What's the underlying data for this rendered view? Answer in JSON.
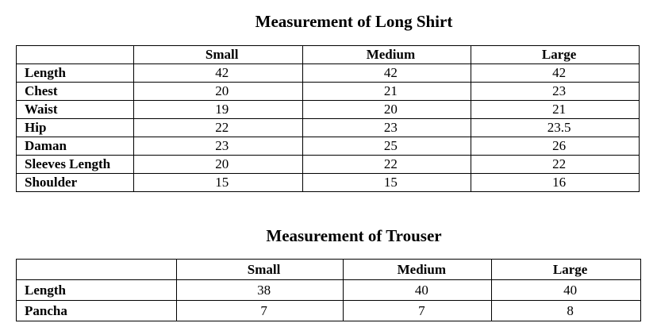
{
  "shirt": {
    "title": "Measurement of Long Shirt",
    "columns": [
      "",
      "Small",
      "Medium",
      "Large"
    ],
    "rows": [
      [
        "Length",
        "42",
        "42",
        "42"
      ],
      [
        "Chest",
        "20",
        "21",
        "23"
      ],
      [
        "Waist",
        "19",
        "20",
        "21"
      ],
      [
        "Hip",
        "22",
        "23",
        "23.5"
      ],
      [
        "Daman",
        "23",
        "25",
        "26"
      ],
      [
        "Sleeves Length",
        "20",
        "22",
        "22"
      ],
      [
        "Shoulder",
        "15",
        "15",
        "16"
      ]
    ]
  },
  "trouser": {
    "title": "Measurement of Trouser",
    "columns": [
      "",
      "Small",
      "Medium",
      "Large"
    ],
    "rows": [
      [
        "Length",
        "38",
        "40",
        "40"
      ],
      [
        "Pancha",
        "7",
        "7",
        "8"
      ]
    ]
  }
}
